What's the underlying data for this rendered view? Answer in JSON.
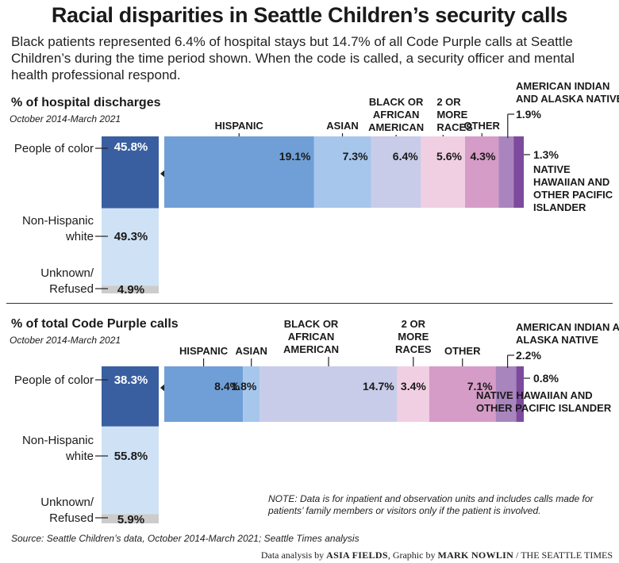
{
  "title": "Racial disparities in Seattle Children’s security calls",
  "subtitle": "Black patients represented 6.4% of hospital stays but 14.7% of all Code Purple calls at Seattle Children’s during the time period shown. When the code is called, a security officer and mental health professional respond.",
  "note": "NOTE: Data is for inpatient and observation units and includes calls made for patients’ family members or visitors only if the patient is involved.",
  "source": "Source: Seattle Children’s data, October 2014-March 2021; Seattle Times analysis",
  "credit": {
    "prefix": "Data analysis by",
    "analyst": "ASIA FIELDS",
    "mid": ", Graphic by",
    "artist": "MARK NOWLIN",
    "suffix": " / THE SEATTLE TIMES"
  },
  "colors": {
    "people_of_color": "#3a5fa0",
    "non_hispanic_white": "#cfe2f5",
    "unknown": "#cccccc",
    "hispanic": "#6f9fd6",
    "asian": "#a6c6ec",
    "black": "#c8cce8",
    "two_or_more": "#f1cfe3",
    "other": "#d59cc7",
    "american_indian": "#a985bd",
    "native_hawaiian": "#7d4a9e"
  },
  "chart_data": [
    {
      "type": "bar",
      "title": "% of hospital discharges",
      "subtitle": "October 2014-March 2021",
      "stack": [
        {
          "name": "People of color",
          "label": "45.8%",
          "value": 45.8
        },
        {
          "name": "Non-Hispanic white",
          "label": "49.3%",
          "value": 49.3
        },
        {
          "name": "Unknown/ Refused",
          "label": "4.9%",
          "value": 4.9
        }
      ],
      "breakdown": [
        {
          "name": "HISPANIC",
          "label": "19.1%",
          "value": 19.1
        },
        {
          "name": "ASIAN",
          "label": "7.3%",
          "value": 7.3
        },
        {
          "name": "BLACK OR AFRICAN AMERICAN",
          "label": "6.4%",
          "value": 6.4
        },
        {
          "name": "2 OR MORE RACES",
          "label": "5.6%",
          "value": 5.6
        },
        {
          "name": "OTHER",
          "label": "4.3%",
          "value": 4.3
        },
        {
          "name": "AMERICAN INDIAN AND ALASKA NATIVE",
          "label": "1.9%",
          "value": 1.9
        },
        {
          "name": "NATIVE HAWAIIAN AND OTHER PACIFIC ISLANDER",
          "label": "1.3%",
          "value": 1.3
        }
      ]
    },
    {
      "type": "bar",
      "title": "% of total Code Purple calls",
      "subtitle": "October 2014-March 2021",
      "stack": [
        {
          "name": "People of color",
          "label": "38.3%",
          "value": 38.3
        },
        {
          "name": "Non-Hispanic white",
          "label": "55.8%",
          "value": 55.8
        },
        {
          "name": "Unknown/ Refused",
          "label": "5.9%",
          "value": 5.9
        }
      ],
      "breakdown": [
        {
          "name": "HISPANIC",
          "label": "8.4%",
          "value": 8.4
        },
        {
          "name": "ASIAN",
          "label": "1.8%",
          "value": 1.8
        },
        {
          "name": "BLACK OR AFRICAN AMERICAN",
          "label": "14.7%",
          "value": 14.7
        },
        {
          "name": "2 OR MORE RACES",
          "label": "3.4%",
          "value": 3.4
        },
        {
          "name": "OTHER",
          "label": "7.1%",
          "value": 7.1
        },
        {
          "name": "AMERICAN INDIAN AND ALASKA NATIVE",
          "label": "2.2%",
          "value": 2.2
        },
        {
          "name": "NATIVE HAWAIIAN AND OTHER PACIFIC ISLANDER",
          "label": "0.8%",
          "value": 0.8
        }
      ]
    }
  ]
}
